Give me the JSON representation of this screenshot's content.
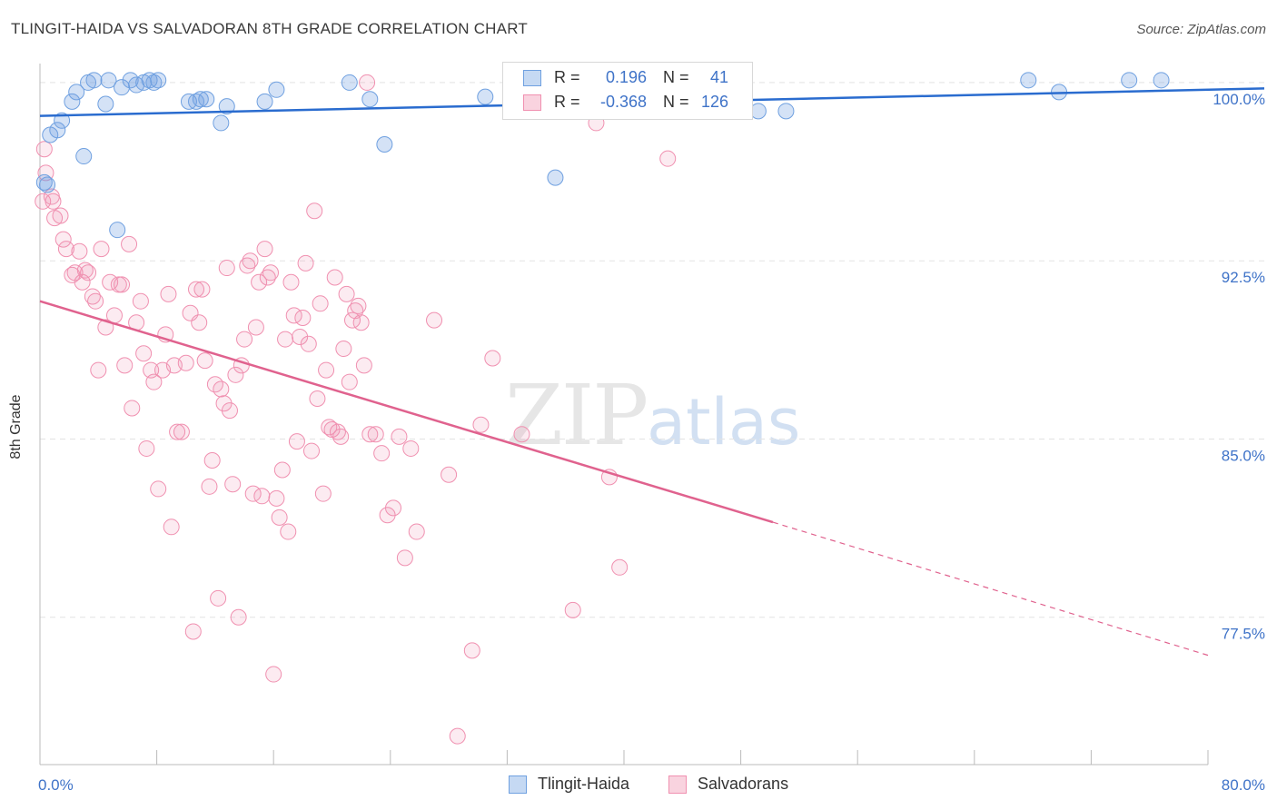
{
  "header": {
    "title": "TLINGIT-HAIDA VS SALVADORAN 8TH GRADE CORRELATION CHART",
    "source": "Source: ZipAtlas.com"
  },
  "watermark": {
    "zip": "ZIP",
    "atlas": "atlas"
  },
  "legend": {
    "rows": [
      {
        "r_label": "R =",
        "r_value": "0.196",
        "n_label": "N =",
        "n_value": "41",
        "color": "#6fa0e0"
      },
      {
        "r_label": "R =",
        "r_value": "-0.368",
        "n_label": "N =",
        "n_value": "126",
        "color": "#f090b0"
      }
    ]
  },
  "bottom_legend": [
    {
      "label": "Tlingit-Haida",
      "color": "#6fa0e0"
    },
    {
      "label": "Salvadorans",
      "color": "#f090b0"
    }
  ],
  "chart_data": {
    "type": "scatter",
    "title": "TLINGIT-HAIDA VS SALVADORAN 8TH GRADE CORRELATION CHART",
    "xlabel": "",
    "ylabel": "8th Grade",
    "xlim": [
      0,
      80
    ],
    "ylim": [
      71.3,
      100.8
    ],
    "x_tick_labels": [
      "0.0%",
      "80.0%"
    ],
    "y_ticks": [
      77.5,
      85.0,
      92.5,
      100.0
    ],
    "y_tick_labels": [
      "77.5%",
      "85.0%",
      "92.5%",
      "100.0%"
    ],
    "grid": "horizontal dashed",
    "legend_position": "top-center",
    "series": [
      {
        "name": "Tlingit-Haida",
        "color": "#6fa0e0",
        "trend": {
          "x": [
            0,
            80
          ],
          "y": [
            98.6,
            99.7
          ]
        },
        "points": [
          [
            0.5,
            95.7
          ],
          [
            0.7,
            97.8
          ],
          [
            1.2,
            98.0
          ],
          [
            1.5,
            98.4
          ],
          [
            2.2,
            99.2
          ],
          [
            2.5,
            99.6
          ],
          [
            3.0,
            96.9
          ],
          [
            3.3,
            100.0
          ],
          [
            3.7,
            100.1
          ],
          [
            4.5,
            99.1
          ],
          [
            4.7,
            100.1
          ],
          [
            5.6,
            99.8
          ],
          [
            6.2,
            100.1
          ],
          [
            6.6,
            99.9
          ],
          [
            7.1,
            100.0
          ],
          [
            7.5,
            100.1
          ],
          [
            7.8,
            100.0
          ],
          [
            8.1,
            100.1
          ],
          [
            5.3,
            93.8
          ],
          [
            10.2,
            99.2
          ],
          [
            10.7,
            99.2
          ],
          [
            11.0,
            99.3
          ],
          [
            11.4,
            99.3
          ],
          [
            12.4,
            98.3
          ],
          [
            12.8,
            99.0
          ],
          [
            15.4,
            99.2
          ],
          [
            16.2,
            99.7
          ],
          [
            21.2,
            100.0
          ],
          [
            22.6,
            99.3
          ],
          [
            23.6,
            97.4
          ],
          [
            30.5,
            99.4
          ],
          [
            35.3,
            96.0
          ],
          [
            42.7,
            98.8
          ],
          [
            44.5,
            99.2
          ],
          [
            49.2,
            98.8
          ],
          [
            51.1,
            98.8
          ],
          [
            67.7,
            100.1
          ],
          [
            69.8,
            99.6
          ],
          [
            74.6,
            100.1
          ],
          [
            76.8,
            100.1
          ],
          [
            0.3,
            95.8
          ]
        ]
      },
      {
        "name": "Salvadorans",
        "color": "#f090b0",
        "trend": {
          "x": [
            0,
            50.2
          ],
          "y": [
            90.8,
            81.5
          ]
        },
        "trend_dashed": {
          "x": [
            50.2,
            80
          ],
          "y": [
            81.5,
            75.9
          ]
        },
        "points": [
          [
            0.3,
            97.2
          ],
          [
            0.4,
            96.2
          ],
          [
            0.8,
            95.2
          ],
          [
            0.9,
            95.0
          ],
          [
            1.0,
            94.3
          ],
          [
            1.4,
            94.4
          ],
          [
            1.6,
            93.4
          ],
          [
            1.8,
            93.0
          ],
          [
            2.2,
            91.9
          ],
          [
            2.4,
            92.0
          ],
          [
            2.7,
            92.9
          ],
          [
            2.9,
            91.6
          ],
          [
            3.1,
            92.1
          ],
          [
            3.3,
            92.0
          ],
          [
            3.6,
            91.0
          ],
          [
            3.8,
            90.8
          ],
          [
            4.0,
            87.9
          ],
          [
            4.2,
            93.0
          ],
          [
            4.5,
            89.7
          ],
          [
            4.8,
            91.6
          ],
          [
            5.1,
            90.2
          ],
          [
            5.4,
            91.5
          ],
          [
            5.6,
            91.5
          ],
          [
            5.8,
            88.1
          ],
          [
            6.1,
            93.2
          ],
          [
            6.3,
            86.3
          ],
          [
            6.6,
            89.9
          ],
          [
            6.9,
            90.8
          ],
          [
            7.1,
            88.6
          ],
          [
            7.3,
            84.6
          ],
          [
            7.6,
            87.9
          ],
          [
            7.8,
            87.4
          ],
          [
            8.1,
            82.9
          ],
          [
            8.4,
            87.9
          ],
          [
            8.6,
            89.4
          ],
          [
            8.8,
            91.1
          ],
          [
            9.0,
            81.3
          ],
          [
            9.2,
            88.1
          ],
          [
            9.4,
            85.3
          ],
          [
            9.7,
            85.3
          ],
          [
            10.0,
            88.2
          ],
          [
            10.3,
            90.3
          ],
          [
            10.5,
            76.9
          ],
          [
            10.7,
            91.3
          ],
          [
            10.9,
            89.9
          ],
          [
            11.1,
            91.3
          ],
          [
            11.3,
            88.3
          ],
          [
            11.6,
            83.0
          ],
          [
            11.8,
            84.1
          ],
          [
            12.0,
            87.3
          ],
          [
            12.2,
            78.3
          ],
          [
            12.4,
            87.1
          ],
          [
            12.6,
            86.5
          ],
          [
            12.8,
            92.2
          ],
          [
            13.0,
            86.2
          ],
          [
            13.2,
            83.1
          ],
          [
            13.4,
            87.7
          ],
          [
            13.6,
            77.5
          ],
          [
            13.8,
            88.1
          ],
          [
            14.0,
            89.2
          ],
          [
            14.2,
            92.3
          ],
          [
            14.4,
            92.5
          ],
          [
            14.6,
            82.7
          ],
          [
            14.8,
            89.7
          ],
          [
            15.0,
            91.6
          ],
          [
            15.2,
            82.6
          ],
          [
            15.4,
            93.0
          ],
          [
            15.6,
            91.8
          ],
          [
            15.8,
            92.0
          ],
          [
            16.0,
            75.1
          ],
          [
            16.2,
            82.5
          ],
          [
            16.4,
            81.7
          ],
          [
            16.6,
            83.7
          ],
          [
            16.8,
            89.2
          ],
          [
            17.0,
            81.1
          ],
          [
            17.2,
            91.6
          ],
          [
            17.4,
            90.2
          ],
          [
            17.6,
            84.9
          ],
          [
            17.8,
            89.3
          ],
          [
            18.0,
            90.1
          ],
          [
            18.2,
            92.4
          ],
          [
            18.4,
            89.0
          ],
          [
            18.6,
            84.5
          ],
          [
            18.8,
            94.6
          ],
          [
            19.0,
            86.7
          ],
          [
            19.2,
            90.7
          ],
          [
            19.4,
            82.7
          ],
          [
            19.6,
            87.9
          ],
          [
            19.8,
            85.5
          ],
          [
            20.0,
            85.4
          ],
          [
            20.2,
            91.8
          ],
          [
            20.4,
            85.3
          ],
          [
            20.6,
            85.1
          ],
          [
            20.8,
            88.8
          ],
          [
            21.0,
            91.1
          ],
          [
            21.2,
            87.4
          ],
          [
            21.4,
            90.0
          ],
          [
            21.6,
            90.4
          ],
          [
            21.8,
            90.6
          ],
          [
            22.0,
            89.9
          ],
          [
            22.2,
            88.1
          ],
          [
            22.4,
            100.0
          ],
          [
            22.6,
            85.2
          ],
          [
            23.0,
            85.2
          ],
          [
            23.4,
            84.4
          ],
          [
            23.8,
            81.8
          ],
          [
            24.2,
            82.1
          ],
          [
            24.6,
            85.1
          ],
          [
            25.0,
            80.0
          ],
          [
            25.4,
            84.6
          ],
          [
            25.8,
            81.1
          ],
          [
            27.0,
            90.0
          ],
          [
            28.0,
            83.5
          ],
          [
            28.6,
            72.5
          ],
          [
            29.6,
            76.1
          ],
          [
            30.2,
            85.6
          ],
          [
            31.0,
            88.4
          ],
          [
            33.0,
            85.2
          ],
          [
            36.5,
            77.8
          ],
          [
            38.1,
            98.3
          ],
          [
            39.0,
            83.4
          ],
          [
            39.7,
            79.6
          ],
          [
            43.0,
            96.8
          ],
          [
            0.2,
            95.0
          ]
        ]
      }
    ]
  }
}
